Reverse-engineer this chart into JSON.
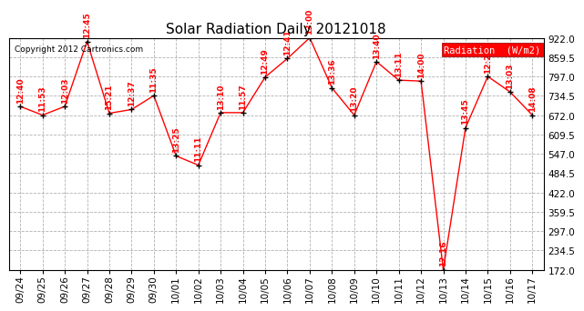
{
  "title": "Solar Radiation Daily 20121018",
  "copyright": "Copyright 2012 Cartronics.com",
  "legend_label": "Radiation  (W/m2)",
  "dates": [
    "09/24",
    "09/25",
    "09/26",
    "09/27",
    "09/28",
    "09/29",
    "09/30",
    "10/01",
    "10/02",
    "10/03",
    "10/04",
    "10/05",
    "10/06",
    "10/07",
    "10/08",
    "10/09",
    "10/10",
    "10/11",
    "10/12",
    "10/13",
    "10/14",
    "10/15",
    "10/16",
    "10/17"
  ],
  "values": [
    700,
    672,
    700,
    910,
    678,
    690,
    735,
    540,
    510,
    680,
    680,
    795,
    855,
    922,
    760,
    672,
    845,
    785,
    782,
    172,
    631,
    797,
    747,
    672
  ],
  "labels": [
    "12:40",
    "11:53",
    "12:03",
    "12:45",
    "15:21",
    "12:37",
    "11:35",
    "13:25",
    "11:11",
    "13:10",
    "11:57",
    "12:49",
    "12:41",
    "13:00",
    "13:36",
    "13:20",
    "13:40",
    "13:11",
    "14:00",
    "12:16",
    "13:45",
    "12:26",
    "13:03",
    "14:08"
  ],
  "line_color": "red",
  "marker_color": "black",
  "label_color": "red",
  "background_color": "white",
  "grid_color": "#aaaaaa",
  "title_color": "black",
  "ylim": [
    172.0,
    922.0
  ],
  "yticks": [
    172.0,
    234.5,
    297.0,
    359.5,
    422.0,
    484.5,
    547.0,
    609.5,
    672.0,
    734.5,
    797.0,
    859.5,
    922.0
  ],
  "title_fontsize": 11,
  "label_fontsize": 6.5,
  "copyright_fontsize": 6.5,
  "tick_fontsize": 7.5
}
